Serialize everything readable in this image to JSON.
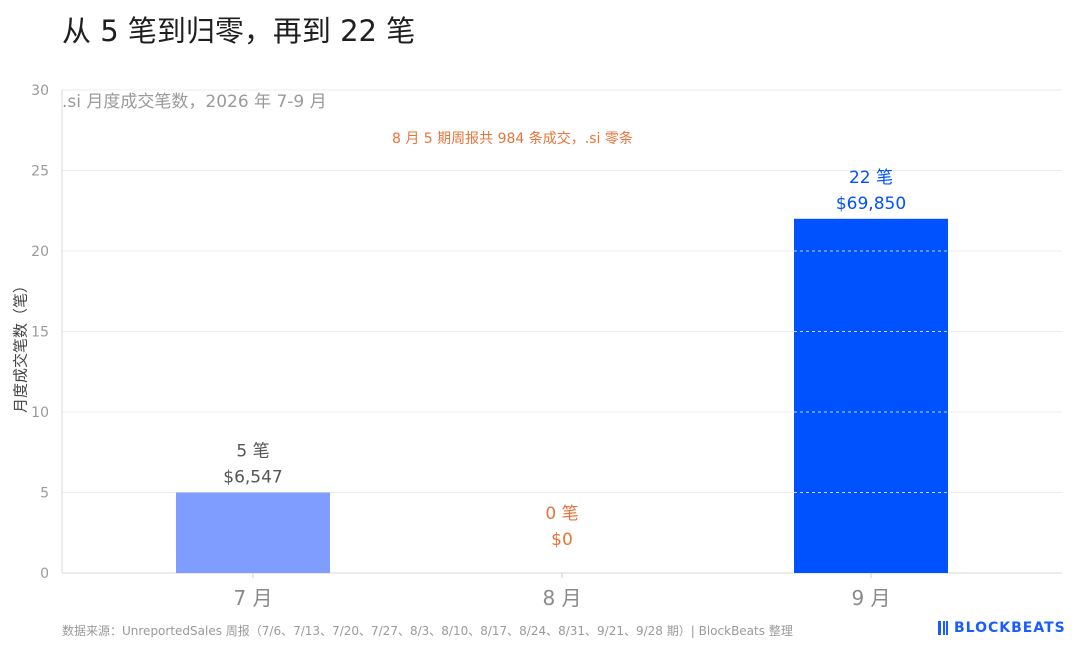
{
  "title": "从 5 笔到归零，再到 22 笔",
  "subtitle": ".si 月度成交笔数，2026 年 7-9 月",
  "annotation": "8 月 5 期周报共 984 条成交，.si 零条",
  "source": "数据来源：UnreportedSales 周报（7/6、7/13、7/20、7/27、8/3、8/10、8/17、8/24、8/31、9/21、9/28 期）| BlockBeats 整理",
  "brand": "BLOCKBEATS",
  "colors": {
    "bar_jul": "#7f9cff",
    "bar_aug": "#e8743b",
    "bar_sep": "#0052ff",
    "label_jul": "#555555",
    "label_aug": "#e8743b",
    "label_sep": "#0052ff",
    "grid": "#ececec",
    "axis_text": "#9a9a9a"
  },
  "chart_data": {
    "type": "bar",
    "categories": [
      "7 月",
      "8 月",
      "9 月"
    ],
    "values": [
      5,
      0,
      22
    ],
    "data_labels": [
      [
        "5 笔",
        "$6,547"
      ],
      [
        "0 笔",
        "$0"
      ],
      [
        "22 笔",
        "$69,850"
      ]
    ],
    "ylabel": "月度成交笔数（笔）",
    "ylim": [
      0,
      30
    ],
    "yticks": [
      0,
      5,
      10,
      15,
      20,
      25,
      30
    ],
    "grid": true
  }
}
